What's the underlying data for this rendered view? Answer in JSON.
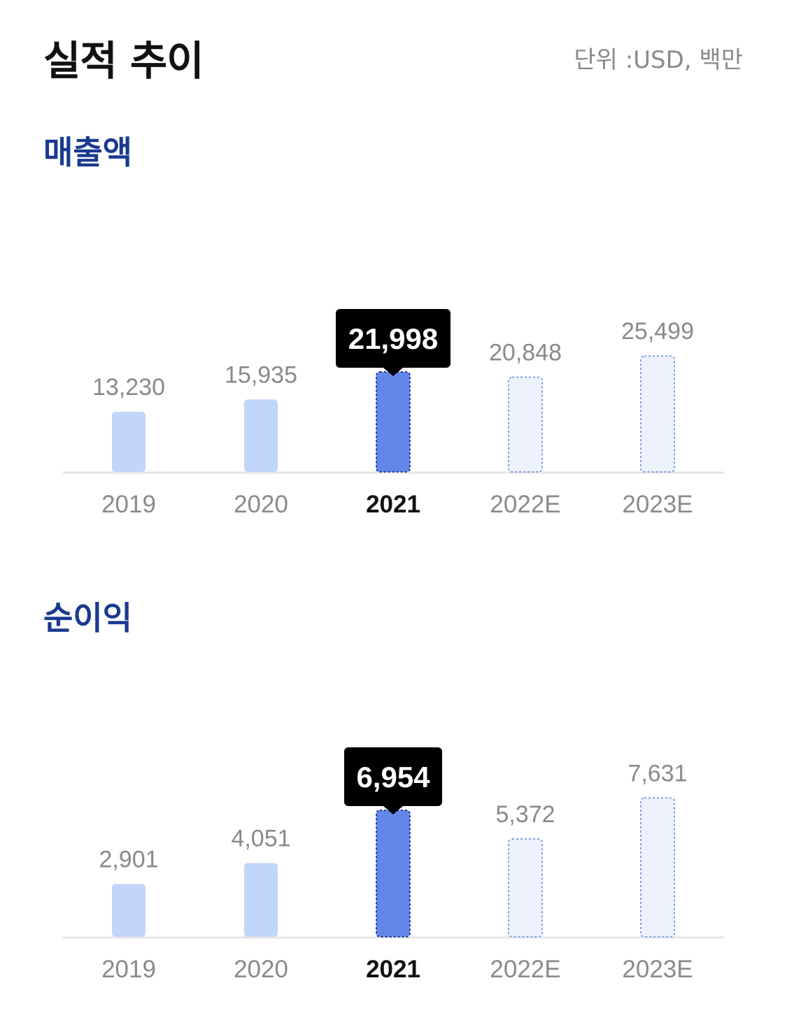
{
  "header": {
    "title": "실적 추이",
    "unit": "단위 :USD, 백만"
  },
  "colors": {
    "actual": "#c2d5fb",
    "highlight": "#6386ea",
    "highlight_border": "#1f3a94",
    "estimate_fill": "#eef2fc",
    "estimate_border": "#7e9ee8",
    "tooltip_bg": "#000000",
    "axis": "#e6e6e6"
  },
  "chart_data": [
    {
      "type": "bar",
      "title": "매출액",
      "categories": [
        "2019",
        "2020",
        "2021",
        "2022E",
        "2023E"
      ],
      "values": [
        13230,
        15935,
        21998,
        20848,
        25499
      ],
      "value_labels": [
        "13,230",
        "15,935",
        "21,998",
        "20,848",
        "25,499"
      ],
      "highlight_index": 2,
      "estimate_indices": [
        3,
        4
      ]
    },
    {
      "type": "bar",
      "title": "순이익",
      "categories": [
        "2019",
        "2020",
        "2021",
        "2022E",
        "2023E"
      ],
      "values": [
        2901,
        4051,
        6954,
        5372,
        7631
      ],
      "value_labels": [
        "2,901",
        "4,051",
        "6,954",
        "5,372",
        "7,631"
      ],
      "highlight_index": 2,
      "estimate_indices": [
        3,
        4
      ]
    }
  ]
}
